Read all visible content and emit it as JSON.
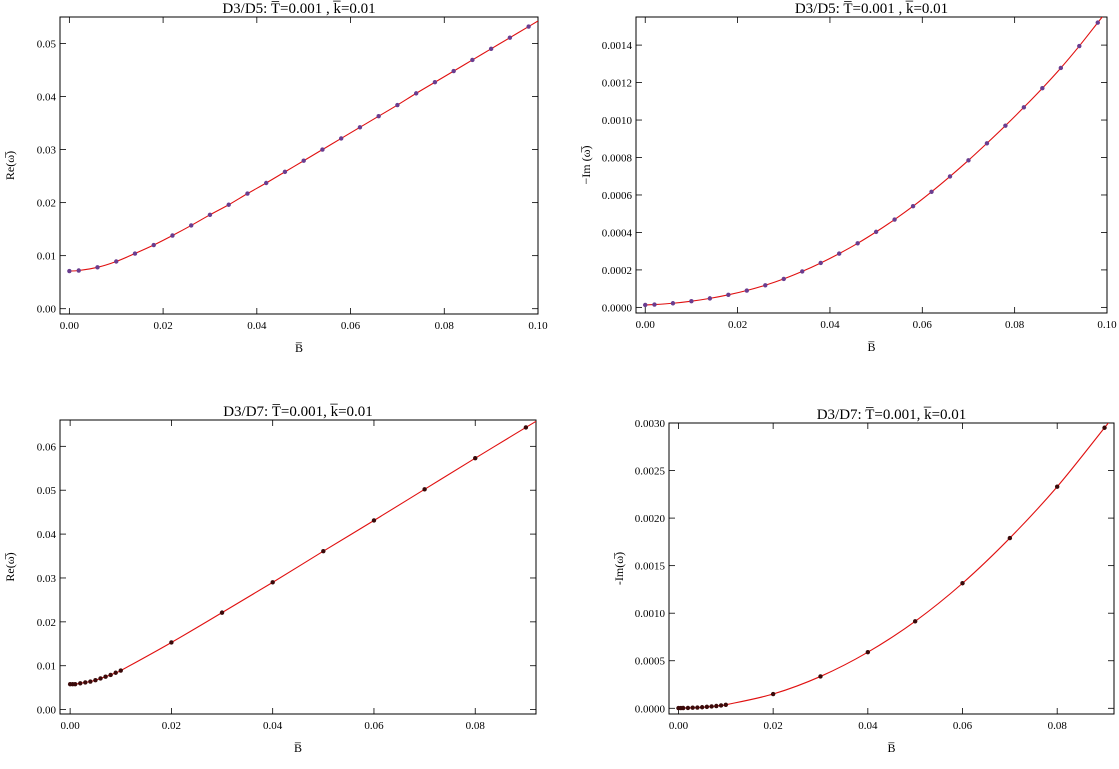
{
  "chart_data": [
    {
      "type": "line",
      "title": "D3/D5: T̅=0.001 , k̅=0.01",
      "xlabel": "B̅",
      "ylabel": "Re(ω̅)",
      "xlim": [
        -0.002,
        0.1
      ],
      "ylim": [
        -0.001,
        0.055
      ],
      "x_ticks": [
        "0.00",
        "0.02",
        "0.04",
        "0.06",
        "0.08",
        "0.10"
      ],
      "y_ticks": [
        "0.00",
        "0.01",
        "0.02",
        "0.03",
        "0.04",
        "0.05"
      ],
      "x_tick_values": [
        0,
        0.02,
        0.04,
        0.06,
        0.08,
        0.1
      ],
      "y_tick_values": [
        0,
        0.01,
        0.02,
        0.03,
        0.04,
        0.05
      ],
      "grid": false,
      "curve_color": "#e01010",
      "marker_color": "#6a3d8f",
      "series": [
        {
          "kind": "points",
          "x": [
            0,
            0.002,
            0.006,
            0.01,
            0.014,
            0.018,
            0.022,
            0.026,
            0.03,
            0.034,
            0.038,
            0.042,
            0.046,
            0.05,
            0.054,
            0.058,
            0.062,
            0.066,
            0.07,
            0.074,
            0.078,
            0.082,
            0.086,
            0.09,
            0.094,
            0.098
          ],
          "y": [
            0.0071,
            0.0072,
            0.0078,
            0.0089,
            0.0104,
            0.012,
            0.0138,
            0.0157,
            0.0177,
            0.0196,
            0.0217,
            0.0237,
            0.0258,
            0.0279,
            0.03,
            0.0321,
            0.0342,
            0.0363,
            0.0384,
            0.0406,
            0.0427,
            0.0448,
            0.0469,
            0.049,
            0.0511,
            0.0532
          ]
        }
      ]
    },
    {
      "type": "line",
      "title": "D3/D5: T̅=0.001 , k̅=0.01",
      "xlabel": "B̅",
      "ylabel": "−Im (ω̅)",
      "xlim": [
        -0.002,
        0.1
      ],
      "ylim": [
        -3e-05,
        0.00155
      ],
      "x_ticks": [
        "0.00",
        "0.02",
        "0.04",
        "0.06",
        "0.08",
        "0.10"
      ],
      "y_ticks": [
        "0.0000",
        "0.0002",
        "0.0004",
        "0.0006",
        "0.0008",
        "0.0010",
        "0.0012",
        "0.0014"
      ],
      "x_tick_values": [
        0,
        0.02,
        0.04,
        0.06,
        0.08,
        0.1
      ],
      "y_tick_values": [
        0,
        0.0002,
        0.0004,
        0.0006,
        0.0008,
        0.001,
        0.0012,
        0.0014
      ],
      "grid": false,
      "curve_color": "#e01010",
      "marker_color": "#6a3d8f",
      "series": [
        {
          "kind": "points",
          "x": [
            0,
            0.002,
            0.006,
            0.01,
            0.014,
            0.018,
            0.022,
            0.026,
            0.03,
            0.034,
            0.038,
            0.042,
            0.046,
            0.05,
            0.054,
            0.058,
            0.062,
            0.066,
            0.07,
            0.074,
            0.078,
            0.082,
            0.086,
            0.09,
            0.094,
            0.098
          ],
          "y": [
            1.3e-05,
            1.5e-05,
            2.2e-05,
            3.3e-05,
            4.8e-05,
            6.7e-05,
            9e-05,
            0.000118,
            0.000152,
            0.000192,
            0.000237,
            0.000287,
            0.000342,
            0.000403,
            0.000469,
            0.00054,
            0.000617,
            0.000699,
            0.000785,
            0.000876,
            0.00097,
            0.001068,
            0.00117,
            0.001278,
            0.001395,
            0.00152
          ]
        }
      ]
    },
    {
      "type": "line",
      "title": "D3/D7: T̅=0.001, k̅=0.01",
      "xlabel": "B̅",
      "ylabel": "Re(ω̅)",
      "xlim": [
        -0.002,
        0.092
      ],
      "ylim": [
        -0.001,
        0.066
      ],
      "x_ticks": [
        "0.00",
        "0.02",
        "0.04",
        "0.06",
        "0.08"
      ],
      "y_ticks": [
        "0.00",
        "0.01",
        "0.02",
        "0.03",
        "0.04",
        "0.05",
        "0.06"
      ],
      "x_tick_values": [
        0,
        0.02,
        0.04,
        0.06,
        0.08
      ],
      "y_tick_values": [
        0,
        0.01,
        0.02,
        0.03,
        0.04,
        0.05,
        0.06
      ],
      "grid": false,
      "curve_color": "#e01010",
      "marker_color": "#3a0a0a",
      "series": [
        {
          "kind": "points",
          "x": [
            0,
            0.0005,
            0.001,
            0.002,
            0.003,
            0.004,
            0.005,
            0.006,
            0.007,
            0.008,
            0.009,
            0.01,
            0.02,
            0.03,
            0.04,
            0.05,
            0.06,
            0.07,
            0.08,
            0.09
          ],
          "y": [
            0.0058,
            0.0058,
            0.0058,
            0.006,
            0.0062,
            0.0064,
            0.0067,
            0.0071,
            0.0075,
            0.0079,
            0.0084,
            0.0089,
            0.0153,
            0.0221,
            0.029,
            0.0361,
            0.0431,
            0.0502,
            0.0573,
            0.0643
          ]
        }
      ]
    },
    {
      "type": "line",
      "title": "D3/D7: T̅=0.001, k̅=0.01",
      "xlabel": "B̅",
      "ylabel": "-Im(ω̅)",
      "xlim": [
        -0.002,
        0.092
      ],
      "ylim": [
        -6e-05,
        0.003
      ],
      "x_ticks": [
        "0.00",
        "0.02",
        "0.04",
        "0.06",
        "0.08"
      ],
      "y_ticks": [
        "0.0000",
        "0.0005",
        "0.0010",
        "0.0015",
        "0.0020",
        "0.0025",
        "0.0030"
      ],
      "x_tick_values": [
        0,
        0.02,
        0.04,
        0.06,
        0.08
      ],
      "y_tick_values": [
        0,
        0.0005,
        0.001,
        0.0015,
        0.002,
        0.0025,
        0.003
      ],
      "grid": false,
      "curve_color": "#e01010",
      "marker_color": "#3a0a0a",
      "series": [
        {
          "kind": "points",
          "x": [
            0,
            0.0005,
            0.001,
            0.002,
            0.003,
            0.004,
            0.005,
            0.006,
            0.007,
            0.008,
            0.009,
            0.01,
            0.02,
            0.03,
            0.04,
            0.05,
            0.06,
            0.07,
            0.08,
            0.09
          ],
          "y": [
            2e-06,
            2e-06,
            3e-06,
            4e-06,
            6e-06,
            8e-06,
            1.1e-05,
            1.5e-05,
            1.9e-05,
            2.4e-05,
            3e-05,
            3.7e-05,
            0.00015,
            0.000335,
            0.00059,
            0.000915,
            0.001315,
            0.00179,
            0.00233,
            0.00295
          ]
        }
      ]
    }
  ]
}
